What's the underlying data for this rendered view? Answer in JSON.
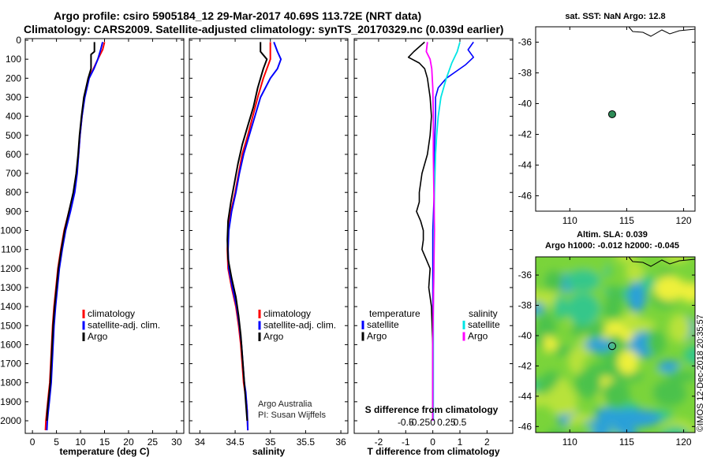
{
  "header": {
    "line1": "Argo profile: csiro 5905184_12 29-Mar-2017 40.69S 113.72E (NRT data)",
    "line2": "Climatology: CARS2009. Satellite-adjusted climatology: synTS_20170329.nc (0.039d earlier)"
  },
  "colors": {
    "climatology": "#ff0000",
    "satellite": "#0000ff",
    "argo": "#000000",
    "sat_salinity": "#00e5e5",
    "argo_salinity": "#ff00ff",
    "float_marker": "#2e8b57"
  },
  "depth_ticks": [
    0,
    100,
    200,
    300,
    400,
    500,
    600,
    700,
    800,
    900,
    1000,
    1100,
    1200,
    1300,
    1400,
    1500,
    1600,
    1700,
    1800,
    1900,
    2000
  ],
  "chart_data": [
    {
      "type": "line",
      "id": "temperature",
      "xlabel": "temperature (deg C)",
      "ylabel": "",
      "xlim": [
        -1.5,
        31.5
      ],
      "ylim": [
        2050,
        0
      ],
      "y_reversed": true,
      "xticks": [
        0,
        5,
        10,
        15,
        20,
        25,
        30
      ],
      "legend": [
        "climatology",
        "satellite-adj. clim.",
        "Argo"
      ],
      "series": [
        {
          "name": "climatology",
          "x": [
            15.0,
            14.6,
            13.6,
            12.7,
            11.6,
            10.8,
            10.3,
            9.9,
            9.6,
            9.2,
            8.6,
            7.6,
            6.6,
            5.9,
            5.3,
            4.9,
            4.5,
            4.2,
            4.0,
            3.8,
            3.6,
            3.4,
            3.2,
            3.0,
            2.8,
            2.7
          ],
          "y": [
            10,
            50,
            100,
            150,
            200,
            300,
            400,
            500,
            600,
            700,
            800,
            900,
            1000,
            1100,
            1200,
            1300,
            1400,
            1500,
            1600,
            1700,
            1800,
            1850,
            1900,
            1950,
            2000,
            2050
          ]
        },
        {
          "name": "satellite-adj. clim.",
          "x": [
            14.6,
            14.2,
            13.6,
            12.8,
            11.8,
            10.9,
            10.3,
            9.9,
            9.6,
            9.3,
            8.8,
            7.9,
            6.9,
            6.2,
            5.6,
            5.2,
            4.8,
            4.5,
            4.3,
            4.1,
            3.9,
            3.7,
            3.5,
            3.3,
            3.1,
            3.0
          ],
          "y": [
            10,
            50,
            100,
            150,
            200,
            300,
            400,
            500,
            600,
            700,
            800,
            900,
            1000,
            1100,
            1200,
            1300,
            1400,
            1500,
            1600,
            1700,
            1800,
            1850,
            1900,
            1950,
            2000,
            2050
          ]
        },
        {
          "name": "Argo",
          "x": [
            12.9,
            12.9,
            12.2,
            12.2,
            11.6,
            10.7,
            10.2,
            9.8,
            9.5,
            9.1,
            8.5,
            7.6,
            6.7,
            6.0,
            5.4,
            5.0,
            4.6,
            4.3,
            4.1,
            3.9,
            3.7,
            3.5,
            3.3,
            3.1,
            3.0
          ],
          "y": [
            10,
            60,
            75,
            150,
            200,
            300,
            400,
            500,
            600,
            700,
            800,
            900,
            1000,
            1100,
            1200,
            1300,
            1400,
            1500,
            1600,
            1700,
            1800,
            1850,
            1900,
            1950,
            2000
          ]
        }
      ]
    },
    {
      "type": "line",
      "id": "salinity",
      "xlabel": "salinity",
      "ylabel": "",
      "xlim": [
        33.85,
        36.1
      ],
      "ylim": [
        2050,
        0
      ],
      "y_reversed": true,
      "xticks": [
        34,
        34.5,
        35,
        35.5,
        36
      ],
      "xticklabels": [
        "34",
        "34.5",
        "35",
        "35.5",
        "36"
      ],
      "legend": [
        "climatology",
        "satellite-adj. clim.",
        "Argo"
      ],
      "annotation": [
        "Argo Australia",
        "PI: Susan Wijffels"
      ],
      "series": [
        {
          "name": "climatology",
          "x": [
            35.0,
            35.0,
            35.0,
            34.95,
            34.9,
            34.82,
            34.75,
            34.68,
            34.6,
            34.55,
            34.5,
            34.44,
            34.4,
            34.39,
            34.4,
            34.45,
            34.51,
            34.55,
            34.58,
            34.6,
            34.62,
            34.64,
            34.66,
            34.67,
            34.68
          ],
          "y": [
            10,
            60,
            100,
            150,
            200,
            300,
            400,
            500,
            600,
            700,
            800,
            900,
            1000,
            1100,
            1200,
            1300,
            1400,
            1500,
            1600,
            1700,
            1800,
            1850,
            1900,
            1950,
            2050
          ]
        },
        {
          "name": "satellite-adj. clim.",
          "x": [
            35.05,
            35.1,
            35.15,
            35.1,
            35.0,
            34.86,
            34.78,
            34.7,
            34.62,
            34.56,
            34.51,
            34.45,
            34.41,
            34.4,
            34.41,
            34.46,
            34.52,
            34.56,
            34.59,
            34.61,
            34.63,
            34.65,
            34.66,
            34.67,
            34.68
          ],
          "y": [
            10,
            60,
            100,
            150,
            200,
            300,
            400,
            500,
            600,
            700,
            800,
            900,
            1000,
            1100,
            1200,
            1300,
            1400,
            1500,
            1600,
            1700,
            1800,
            1850,
            1900,
            1950,
            2050
          ]
        },
        {
          "name": "Argo",
          "x": [
            34.86,
            34.86,
            34.95,
            34.9,
            34.82,
            34.76,
            34.68,
            34.6,
            34.54,
            34.49,
            34.44,
            34.4,
            34.39,
            34.4,
            34.45,
            34.51,
            34.55,
            34.58,
            34.6,
            34.62,
            34.64,
            34.65,
            34.66,
            34.67
          ],
          "y": [
            10,
            60,
            100,
            150,
            250,
            350,
            450,
            550,
            650,
            750,
            850,
            950,
            1050,
            1150,
            1250,
            1350,
            1450,
            1550,
            1650,
            1750,
            1850,
            1900,
            1950,
            2000
          ]
        }
      ]
    },
    {
      "type": "line",
      "id": "difference",
      "xlabel": "T difference from climatology",
      "xlabel_secondary": "S difference from climatology",
      "xlim": [
        -2.9,
        2.95
      ],
      "ylim": [
        2050,
        0
      ],
      "y_reversed": true,
      "xticks": [
        -2,
        -1,
        0,
        1,
        2
      ],
      "xticklabels": [
        "-2",
        "-1",
        "0",
        "1",
        "2"
      ],
      "secondary_ticks": [
        -0.5,
        -0.25,
        0,
        0.25,
        0.5
      ],
      "secondary_ticklabels": [
        "-0.5",
        "-0.25",
        "0",
        "0.25",
        "0.5"
      ],
      "legend_temperature_title": "temperature",
      "legend_salinity_title": "salinity",
      "legend_temperature": [
        "satellite",
        "Argo"
      ],
      "legend_salinity": [
        "satellite",
        "Argo"
      ],
      "series": [
        {
          "name": "temperature satellite",
          "x": [
            1.5,
            1.3,
            1.5,
            1.2,
            0.9,
            0.5,
            0.2,
            0.1,
            0.1,
            0.05,
            0.05,
            0,
            0,
            0,
            0,
            0,
            0
          ],
          "y": [
            10,
            50,
            90,
            130,
            160,
            200,
            250,
            300,
            400,
            600,
            800,
            1000,
            1200,
            1400,
            1600,
            1800,
            2000
          ]
        },
        {
          "name": "temperature Argo",
          "x": [
            -0.3,
            -0.7,
            -0.9,
            -0.5,
            -0.3,
            -0.2,
            -0.1,
            -0.05,
            -0.1,
            -0.2,
            -0.4,
            -0.5,
            -0.5,
            -0.6,
            -0.45,
            -0.35,
            -0.35,
            -0.4,
            -0.25,
            -0.1,
            -0.15,
            -0.05,
            0,
            0,
            0,
            0
          ],
          "y": [
            10,
            60,
            90,
            120,
            150,
            200,
            300,
            400,
            500,
            600,
            700,
            800,
            850,
            900,
            950,
            1000,
            1050,
            1100,
            1150,
            1200,
            1300,
            1400,
            1600,
            1800,
            1900,
            2000
          ]
        },
        {
          "name": "salinity satellite",
          "x": [
            0.5,
            0.45,
            0.35,
            0.25,
            0.15,
            0.1,
            0.07,
            0.05,
            0.03,
            0.02,
            0.02,
            0.01,
            0.01,
            0.01,
            0.01
          ],
          "y": [
            10,
            60,
            120,
            200,
            300,
            400,
            500,
            600,
            800,
            1000,
            1200,
            1400,
            1600,
            1800,
            2000
          ]
        },
        {
          "name": "salinity Argo",
          "x": [
            -0.1,
            -0.12,
            -0.05,
            -0.02,
            0,
            0.01,
            0.01,
            0.02,
            0.03,
            0.02,
            0.01,
            0,
            0,
            0
          ],
          "y": [
            10,
            60,
            100,
            150,
            250,
            400,
            600,
            800,
            1000,
            1200,
            1400,
            1600,
            1800,
            2000
          ]
        }
      ]
    },
    {
      "type": "scatter",
      "id": "sst-map",
      "title": "sat. SST: NaN Argo: 12.8",
      "xlim": [
        107,
        121
      ],
      "ylim": [
        -47,
        -35
      ],
      "xticks": [
        110,
        115,
        120
      ],
      "yticks": [
        -36,
        -38,
        -40,
        -42,
        -44,
        -46
      ],
      "xticklabels": [
        "110",
        "115",
        "120"
      ],
      "yticklabels": [
        "-36",
        "-38",
        "-40",
        "-42",
        "-44",
        "-46"
      ],
      "point": {
        "lon": 113.72,
        "lat": -40.69
      }
    },
    {
      "type": "heatmap",
      "id": "sla-map",
      "title_line1": "Altim. SLA: 0.039",
      "title_line2": "Argo h1000: -0.012 h2000: -0.045",
      "xlim": [
        107,
        121
      ],
      "ylim": [
        -46.4,
        -34.8
      ],
      "xticks": [
        110,
        115,
        120
      ],
      "yticks": [
        -36,
        -38,
        -40,
        -42,
        -44,
        -46
      ],
      "xticklabels": [
        "110",
        "115",
        "120"
      ],
      "yticklabels": [
        "-36",
        "-38",
        "-40",
        "-42",
        "-44",
        "-46"
      ],
      "point": {
        "lon": 113.72,
        "lat": -40.69
      },
      "colormap": [
        "#2aa0d8",
        "#35c78a",
        "#4cc24c",
        "#7ad43a",
        "#b8e23a",
        "#eef03a"
      ]
    }
  ],
  "footer": {
    "credit": "©IMOS 12-Dec-2018 20:35:57"
  }
}
